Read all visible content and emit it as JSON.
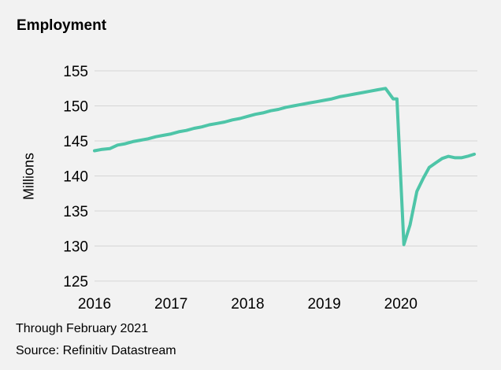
{
  "title": "Employment",
  "note": "Through February 2021",
  "source": "Source: Refinitiv Datastream",
  "chart_data": {
    "type": "line",
    "title": "Employment",
    "xlabel": "",
    "ylabel": "Millions",
    "xlim": [
      2016.0,
      2021.0
    ],
    "ylim": [
      125,
      155
    ],
    "x_ticks": [
      2016,
      2017,
      2018,
      2019,
      2020
    ],
    "y_ticks": [
      125,
      130,
      135,
      140,
      145,
      150,
      155
    ],
    "grid": "horizontal",
    "color": "#4ec5a8",
    "series": [
      {
        "name": "",
        "x": [
          2016.0,
          2016.1,
          2016.2,
          2016.3,
          2016.4,
          2016.5,
          2016.6,
          2016.7,
          2016.8,
          2016.9,
          2017.0,
          2017.1,
          2017.2,
          2017.3,
          2017.4,
          2017.5,
          2017.6,
          2017.7,
          2017.8,
          2017.9,
          2018.0,
          2018.1,
          2018.2,
          2018.3,
          2018.4,
          2018.5,
          2018.6,
          2018.7,
          2018.8,
          2018.9,
          2019.0,
          2019.1,
          2019.2,
          2019.3,
          2019.4,
          2019.5,
          2019.6,
          2019.7,
          2019.8,
          2019.9,
          2019.95,
          2020.04,
          2020.12,
          2020.21,
          2020.29,
          2020.37,
          2020.46,
          2020.54,
          2020.62,
          2020.71,
          2020.79,
          2020.87,
          2020.96
        ],
        "y": [
          143.6,
          143.8,
          143.9,
          144.4,
          144.6,
          144.9,
          145.1,
          145.3,
          145.6,
          145.8,
          146.0,
          146.3,
          146.5,
          146.8,
          147.0,
          147.3,
          147.5,
          147.7,
          148.0,
          148.2,
          148.5,
          148.8,
          149.0,
          149.3,
          149.5,
          149.8,
          150.0,
          150.2,
          150.4,
          150.6,
          150.8,
          151.0,
          151.3,
          151.5,
          151.7,
          151.9,
          152.1,
          152.3,
          152.5,
          151.0,
          151.0,
          130.2,
          133.0,
          137.8,
          139.6,
          141.2,
          141.9,
          142.5,
          142.8,
          142.6,
          142.6,
          142.8,
          143.1
        ]
      }
    ]
  }
}
